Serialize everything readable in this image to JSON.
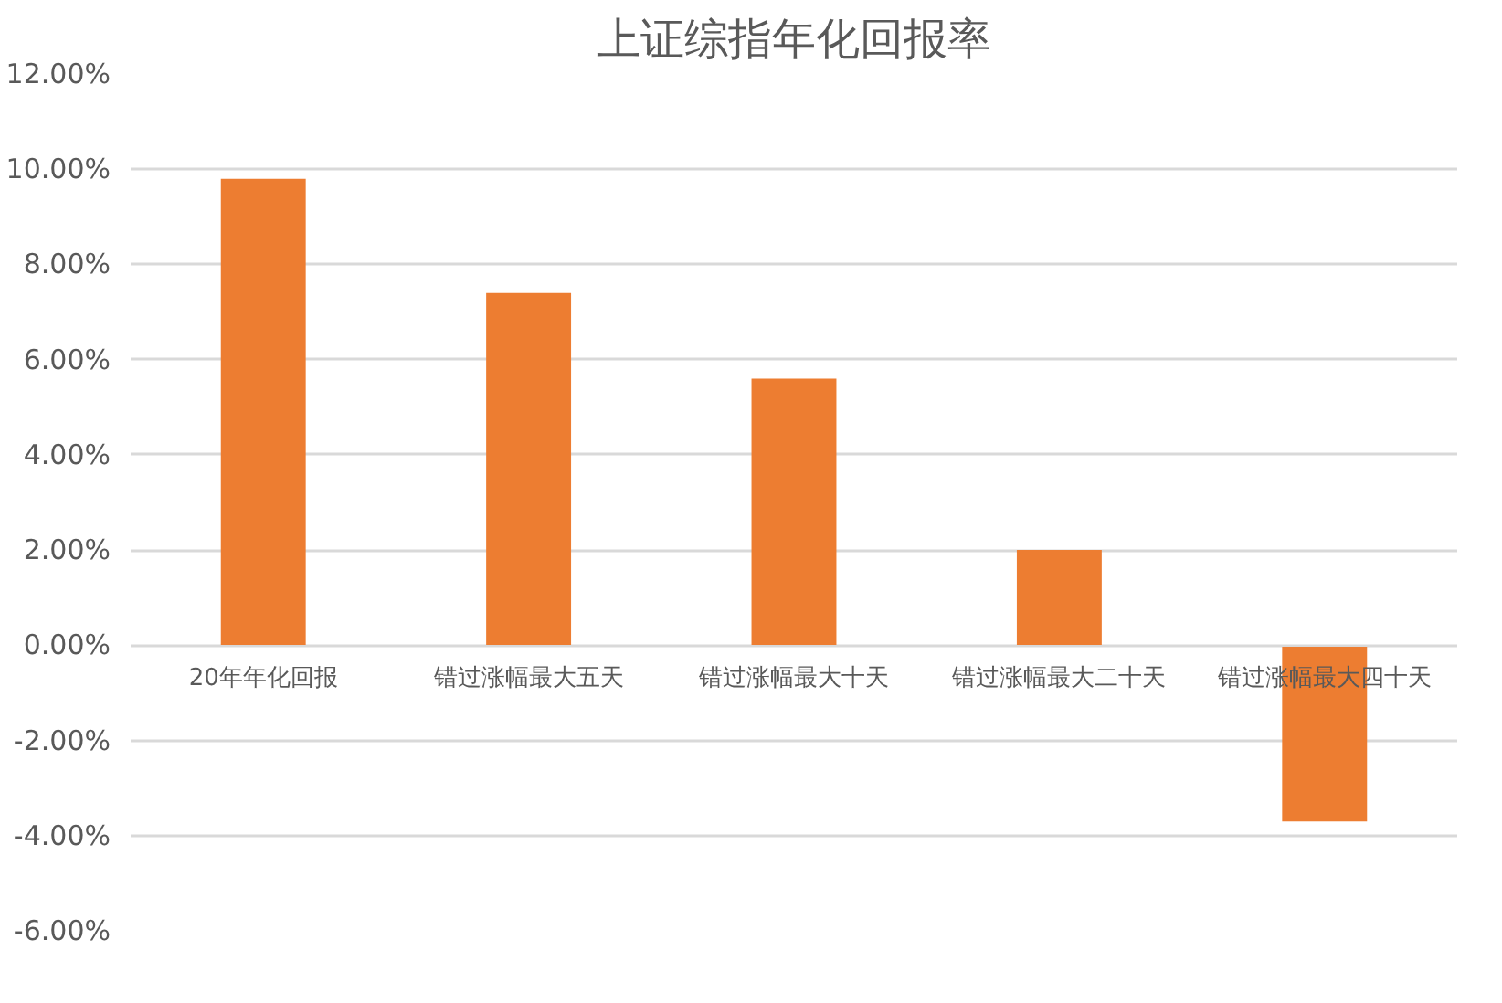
{
  "chart_data": {
    "type": "bar",
    "title": "上证综指年化回报率",
    "categories": [
      "20年年化回报",
      "错过涨幅最大五天",
      "错过涨幅最大十天",
      "错过涨幅最大二十天",
      "错过涨幅最大四十天"
    ],
    "series": [
      {
        "color": "#ed7d31",
        "values": [
          9.8,
          7.4,
          5.6,
          2.0,
          -3.7
        ]
      }
    ],
    "ylim": [
      -6,
      12
    ],
    "yticks": [
      {
        "value": -6,
        "label": "-6.00%"
      },
      {
        "value": -4,
        "label": "-4.00%"
      },
      {
        "value": -2,
        "label": "-2.00%"
      },
      {
        "value": 0,
        "label": "0.00%"
      },
      {
        "value": 2,
        "label": "2.00%"
      },
      {
        "value": 4,
        "label": "4.00%"
      },
      {
        "value": 6,
        "label": "6.00%"
      },
      {
        "value": 8,
        "label": "8.00%"
      },
      {
        "value": 10,
        "label": "10.00%"
      },
      {
        "value": 12,
        "label": "12.00%"
      }
    ],
    "grid": "y"
  }
}
